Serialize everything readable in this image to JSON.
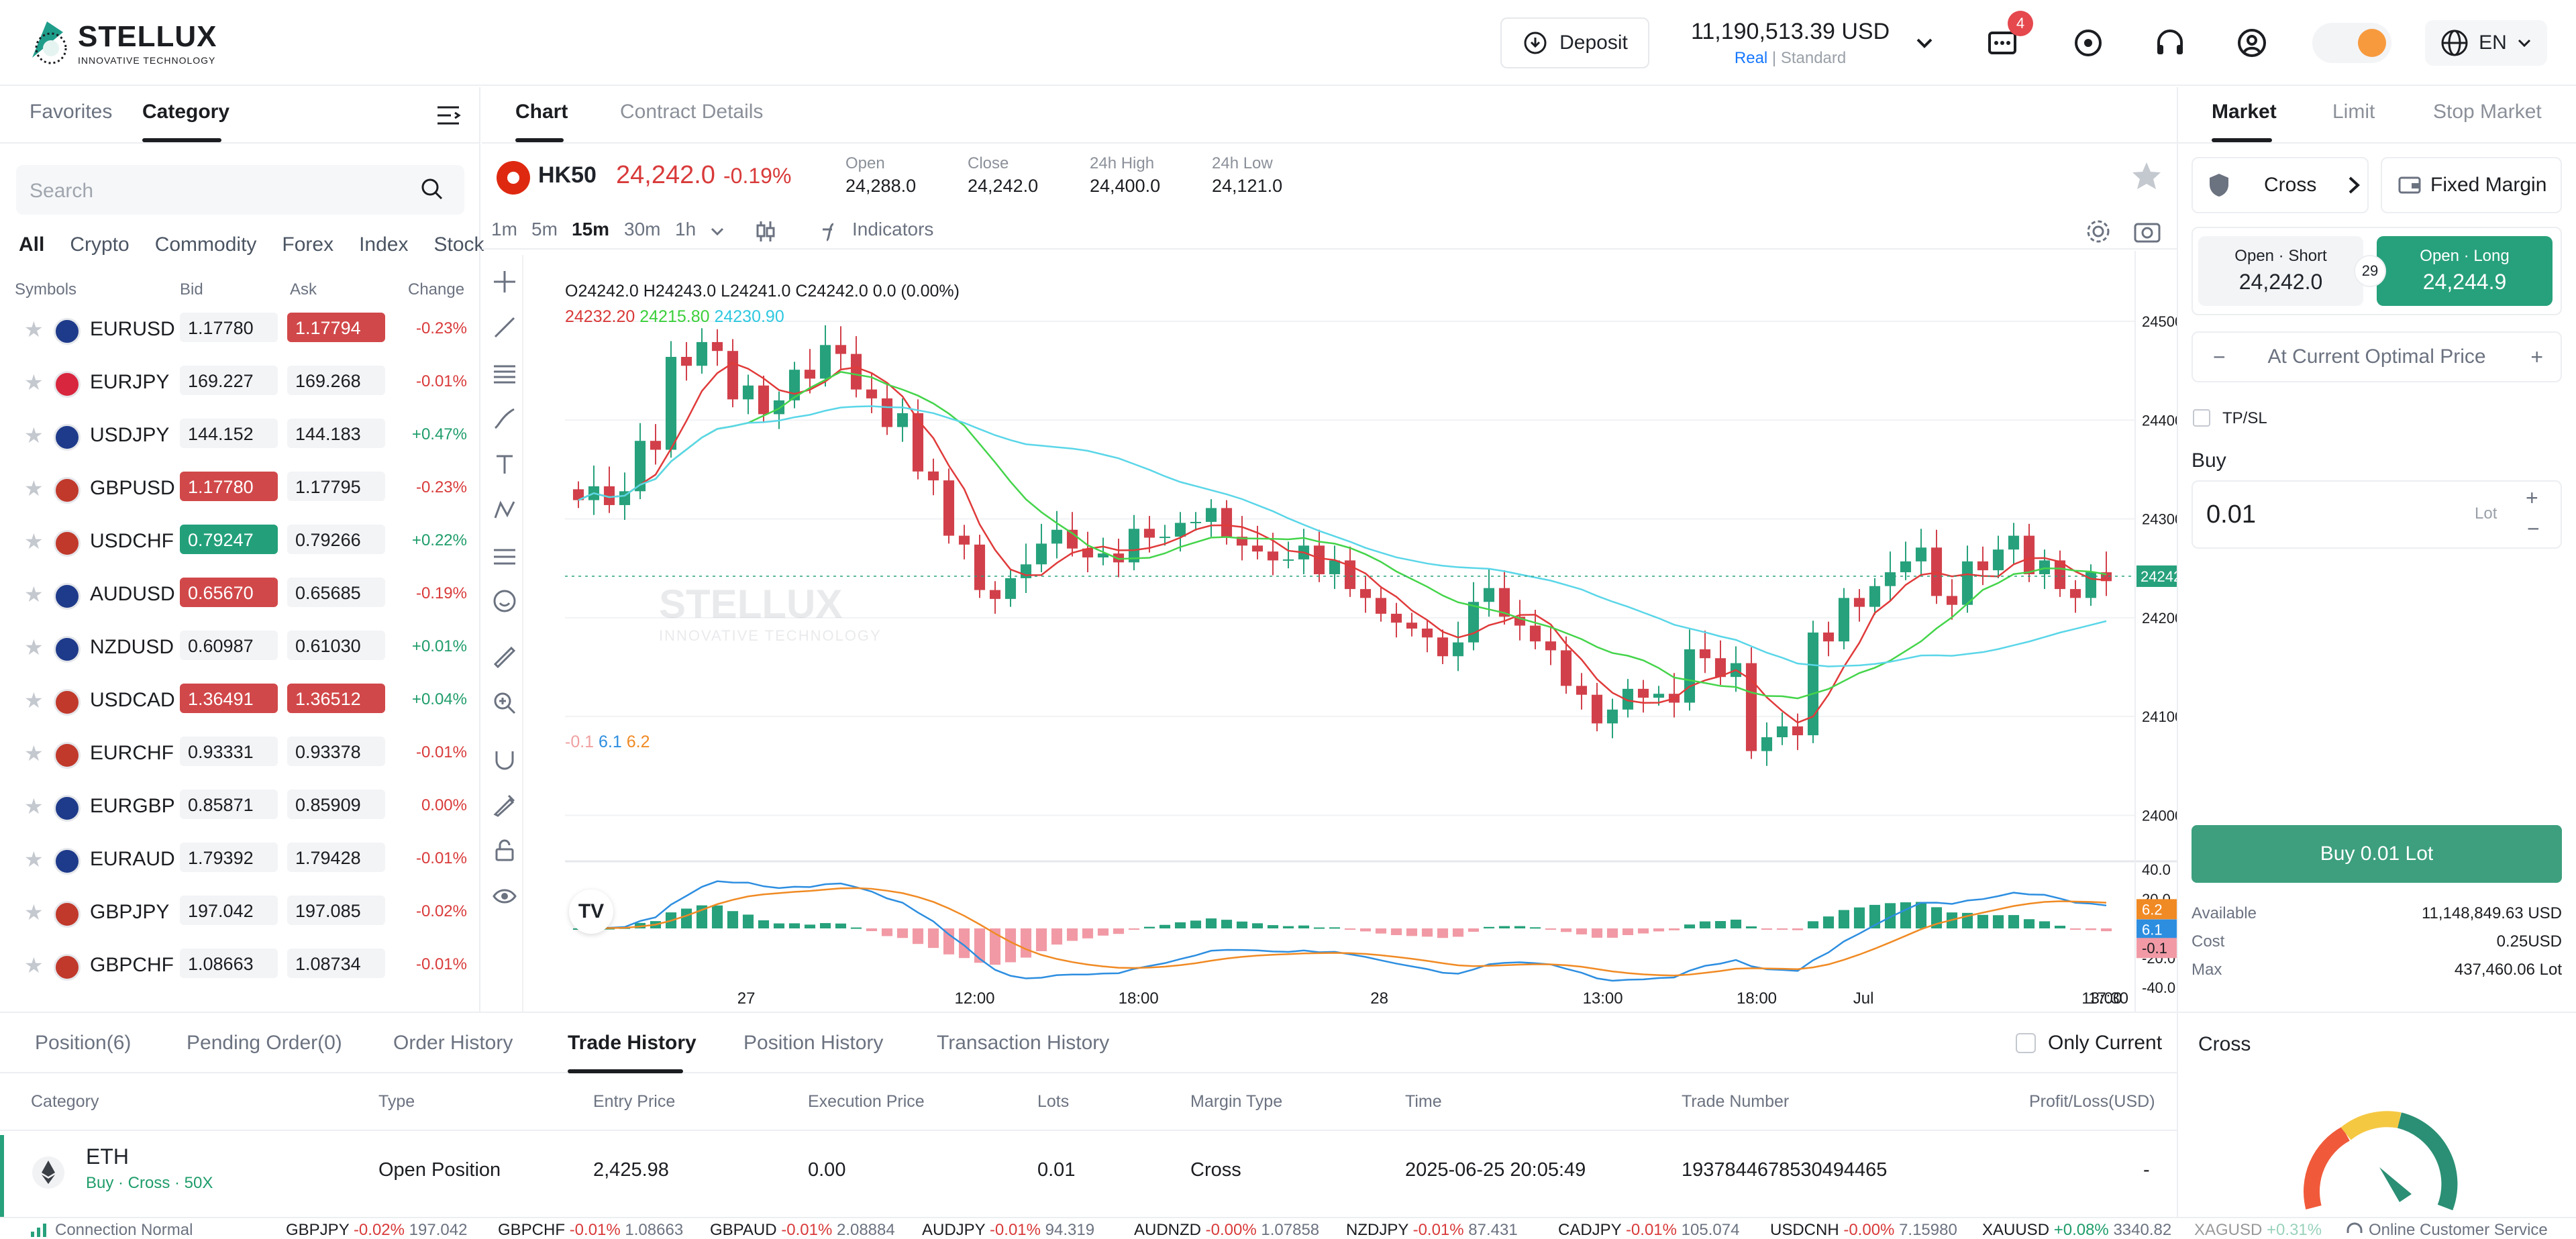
{
  "header": {
    "brand": "STELLUX",
    "brand_sub": "INNOVATIVE TECHNOLOGY",
    "deposit_label": "Deposit",
    "balance": "11,190,513.39 USD",
    "account_real": "Real",
    "account_standard": "Standard",
    "notif_count": "4",
    "lang": "EN"
  },
  "left": {
    "tabs": [
      "Favorites",
      "Category"
    ],
    "search_placeholder": "Search",
    "categories": [
      "All",
      "Crypto",
      "Commodity",
      "Forex",
      "Index",
      "Stock"
    ],
    "columns": [
      "Symbols",
      "Bid",
      "Ask",
      "Change"
    ],
    "rows": [
      {
        "sym": "EURUSD",
        "bid": "1.17780",
        "ask": "1.17794",
        "chg": "-0.23%",
        "bidc": "",
        "askc": "red"
      },
      {
        "sym": "EURJPY",
        "bid": "169.227",
        "ask": "169.268",
        "chg": "-0.01%",
        "bidc": "",
        "askc": ""
      },
      {
        "sym": "USDJPY",
        "bid": "144.152",
        "ask": "144.183",
        "chg": "+0.47%",
        "bidc": "",
        "askc": ""
      },
      {
        "sym": "GBPUSD",
        "bid": "1.17780",
        "ask": "1.17795",
        "chg": "-0.23%",
        "bidc": "red",
        "askc": ""
      },
      {
        "sym": "USDCHF",
        "bid": "0.79247",
        "ask": "0.79266",
        "chg": "+0.22%",
        "bidc": "green",
        "askc": ""
      },
      {
        "sym": "AUDUSD",
        "bid": "0.65670",
        "ask": "0.65685",
        "chg": "-0.19%",
        "bidc": "red",
        "askc": ""
      },
      {
        "sym": "NZDUSD",
        "bid": "0.60987",
        "ask": "0.61030",
        "chg": "+0.01%",
        "bidc": "",
        "askc": ""
      },
      {
        "sym": "USDCAD",
        "bid": "1.36491",
        "ask": "1.36512",
        "chg": "+0.04%",
        "bidc": "red",
        "askc": "red"
      },
      {
        "sym": "EURCHF",
        "bid": "0.93331",
        "ask": "0.93378",
        "chg": "-0.01%",
        "bidc": "",
        "askc": ""
      },
      {
        "sym": "EURGBP",
        "bid": "0.85871",
        "ask": "0.85909",
        "chg": "0.00%",
        "bidc": "",
        "askc": ""
      },
      {
        "sym": "EURAUD",
        "bid": "1.79392",
        "ask": "1.79428",
        "chg": "-0.01%",
        "bidc": "",
        "askc": ""
      },
      {
        "sym": "GBPJPY",
        "bid": "197.042",
        "ask": "197.085",
        "chg": "-0.02%",
        "bidc": "",
        "askc": ""
      },
      {
        "sym": "GBPCHF",
        "bid": "1.08663",
        "ask": "1.08734",
        "chg": "-0.01%",
        "bidc": "",
        "askc": ""
      }
    ]
  },
  "center": {
    "tabs": [
      "Chart",
      "Contract Details"
    ],
    "symbol": "HK50",
    "price": "24,242.0",
    "change": "-0.19%",
    "stats": [
      {
        "label": "Open",
        "value": "24,288.0"
      },
      {
        "label": "Close",
        "value": "24,242.0"
      },
      {
        "label": "24h High",
        "value": "24,400.0"
      },
      {
        "label": "24h Low",
        "value": "24,121.0"
      }
    ],
    "timeframes": [
      "1m",
      "5m",
      "15m",
      "30m",
      "1h"
    ],
    "indicators_label": "Indicators",
    "ohlc": "O24242.0  H24243.0  L24241.0  C24242.0  0.0 (0.00%)",
    "ma_values": [
      "24232.20",
      "24215.80",
      "24230.90"
    ],
    "macd_values": [
      "-0.1",
      "6.1",
      "6.2"
    ],
    "watermark": "STELLUX",
    "watermark_sub": "INNOVATIVE TECHNOLOGY"
  },
  "chart_data": {
    "type": "line",
    "price_axis": [
      "24500.0",
      "24400.0",
      "24300.0",
      "24200.0",
      "24100.0",
      "24000.0"
    ],
    "last_price_tag": "24242.0",
    "macd_axis": [
      "40.0",
      "20.0",
      "-20.0",
      "-40.0"
    ],
    "macd_tags": [
      "6.2",
      "6.1",
      "-0.1"
    ],
    "time_axis": [
      "27",
      "12:00",
      "18:00",
      "28",
      "13:00",
      "18:00",
      "Jul",
      "13:00",
      "17:30"
    ],
    "closes": [
      24330,
      24320,
      24380,
      24460,
      24470,
      24430,
      24410,
      24450,
      24470,
      24420,
      24400,
      24350,
      24280,
      24220,
      24250,
      24280,
      24270,
      24260,
      24280,
      24290,
      24300,
      24280,
      24260,
      24270,
      24250,
      24230,
      24200,
      24180,
      24170,
      24220,
      24200,
      24170,
      24120,
      24100,
      24130,
      24120,
      24160,
      24150,
      24070,
      24090,
      24180,
      24210,
      24240,
      24260,
      24220,
      24250,
      24280,
      24250,
      24230,
      24242
    ]
  },
  "right": {
    "tabs": [
      "Market",
      "Limit",
      "Stop Market"
    ],
    "cross_label": "Cross",
    "margin_label": "Fixed Margin",
    "short_label": "Open · Short",
    "short_price": "24,242.0",
    "long_label": "Open · Long",
    "long_price": "24,244.9",
    "spread": "29",
    "optimal_label": "At Current Optimal Price",
    "tpsl_label": "TP/SL",
    "buy_section": "Buy",
    "lot_value": "0.01",
    "lot_unit": "Lot",
    "buy_button": "Buy 0.01 Lot",
    "available_label": "Available",
    "available_value": "11,148,849.63 USD",
    "cost_label": "Cost",
    "cost_value": "0.25USD",
    "max_label": "Max",
    "max_value": "437,460.06 Lot",
    "cross_panel_title": "Cross"
  },
  "bottom": {
    "tabs": [
      "Position(6)",
      "Pending Order(0)",
      "Order History",
      "Trade History",
      "Position History",
      "Transaction History"
    ],
    "only_current": "Only Current",
    "headers": [
      "Category",
      "Type",
      "Entry Price",
      "Execution Price",
      "Lots",
      "Margin Type",
      "Time",
      "Trade Number",
      "Profit/Loss(USD)"
    ],
    "trade": {
      "asset": "ETH",
      "sub": "Buy · Cross · 50X",
      "type": "Open Position",
      "entry": "2,425.98",
      "exec": "0.00",
      "lots": "0.01",
      "margin": "Cross",
      "time": "2025-06-25 20:05:49",
      "number": "1937844678530494465",
      "pl": "-"
    }
  },
  "footer": {
    "status": "Connection Normal",
    "service": "Online Customer Service",
    "ticker": [
      {
        "sym": "GBPJPY",
        "chg": "-0.02%",
        "px": "197.042"
      },
      {
        "sym": "GBPCHF",
        "chg": "-0.01%",
        "px": "1.08663"
      },
      {
        "sym": "GBPAUD",
        "chg": "-0.01%",
        "px": "2.08884"
      },
      {
        "sym": "AUDJPY",
        "chg": "-0.01%",
        "px": "94.319"
      },
      {
        "sym": "AUDNZD",
        "chg": "-0.00%",
        "px": "1.07858"
      },
      {
        "sym": "NZDJPY",
        "chg": "-0.01%",
        "px": "87.431"
      },
      {
        "sym": "CADJPY",
        "chg": "-0.01%",
        "px": "105.074"
      },
      {
        "sym": "USDCNH",
        "chg": "-0.00%",
        "px": "7.15980"
      },
      {
        "sym": "XAUUSD",
        "chg": "+0.08%",
        "px": "3340.82"
      },
      {
        "sym": "XAGUSD",
        "chg": "+0.31%",
        "px": ""
      }
    ]
  }
}
